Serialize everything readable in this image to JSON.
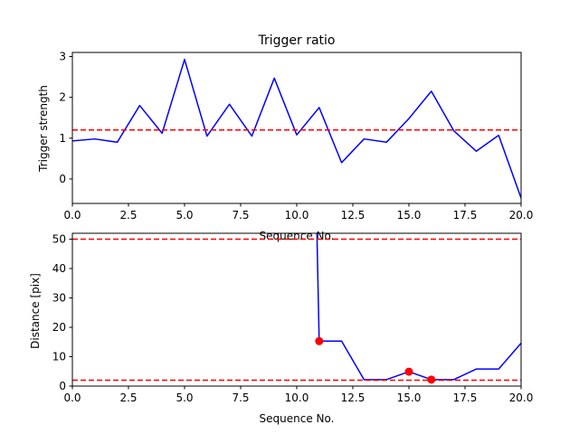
{
  "chart_data": [
    {
      "type": "line",
      "title": "Trigger ratio",
      "xlabel": "Sequence No.",
      "ylabel": "Trigger strength",
      "xlim": [
        0,
        20
      ],
      "ylim": [
        -0.6,
        3.1
      ],
      "xticks": [
        "0.0",
        "2.5",
        "5.0",
        "7.5",
        "10.0",
        "12.5",
        "15.0",
        "17.5",
        "20.0"
      ],
      "yticks": [
        "0",
        "1",
        "2",
        "3"
      ],
      "grid": false,
      "series": [
        {
          "color": "#0000ff",
          "x": [
            0,
            1,
            2,
            3,
            4,
            5,
            6,
            7,
            8,
            9,
            10,
            11,
            12,
            13,
            14,
            15,
            16,
            17,
            18,
            19,
            20
          ],
          "y": [
            0.93,
            0.98,
            0.9,
            1.8,
            1.12,
            2.93,
            1.05,
            1.83,
            1.05,
            2.47,
            1.08,
            1.75,
            0.4,
            0.98,
            0.9,
            1.48,
            2.15,
            1.18,
            0.68,
            1.07,
            -0.47
          ]
        }
      ],
      "hlines": [
        {
          "y": 1.2,
          "color": "#ff0000",
          "style": "dashed"
        }
      ]
    },
    {
      "type": "line",
      "title": "",
      "xlabel": "Sequence No.",
      "ylabel": "Distance [pix]",
      "xlim": [
        0,
        20
      ],
      "ylim": [
        0,
        52
      ],
      "xticks": [
        "0.0",
        "2.5",
        "5.0",
        "7.5",
        "10.0",
        "12.5",
        "15.0",
        "17.5",
        "20.0"
      ],
      "yticks": [
        "0",
        "10",
        "20",
        "30",
        "40",
        "50"
      ],
      "grid": false,
      "series": [
        {
          "color": "#0000ff",
          "x": [
            10.9,
            11,
            12,
            13,
            14,
            15,
            16,
            17,
            18,
            19,
            20
          ],
          "y": [
            52,
            15.3,
            15.3,
            2.2,
            2.2,
            4.9,
            2.2,
            2.2,
            5.8,
            5.8,
            14.6
          ]
        }
      ],
      "markers": {
        "color": "#ff0000",
        "x": [
          11,
          15,
          16
        ],
        "y": [
          15.3,
          4.9,
          2.2
        ]
      },
      "hlines": [
        {
          "y": 50,
          "color": "#ff0000",
          "style": "dashed"
        },
        {
          "y": 2,
          "color": "#ff0000",
          "style": "dashed"
        }
      ]
    }
  ]
}
